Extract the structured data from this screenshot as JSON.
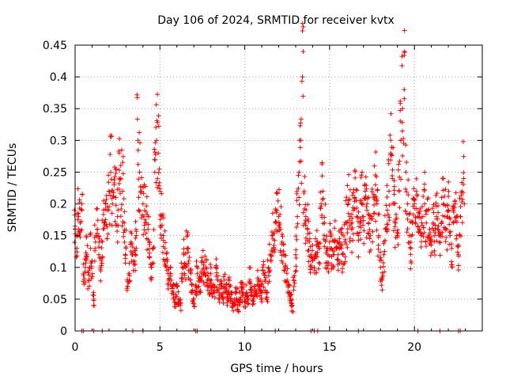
{
  "chart_data": {
    "type": "scatter",
    "title": "Day 106 of 2024, SRMTID for receiver kvtx",
    "xlabel": "GPS time / hours",
    "ylabel": "SRMTID / TECUs",
    "xlim": [
      0,
      24
    ],
    "ylim": [
      0,
      0.45
    ],
    "xticks": [
      0,
      5,
      10,
      15,
      20
    ],
    "xtick_labels": [
      "0",
      "5",
      "10",
      "15",
      "20"
    ],
    "yticks": [
      0,
      0.05,
      0.1,
      0.15,
      0.2,
      0.25,
      0.3,
      0.35,
      0.4,
      0.45
    ],
    "ytick_labels": [
      "0",
      "0.05",
      "0.1",
      "0.15",
      "0.2",
      "0.25",
      "0.3",
      "0.35",
      "0.4",
      "0.45"
    ],
    "grid": true,
    "marker": "+",
    "color": "#ff0000",
    "series": [
      {
        "name": "SRMTID",
        "points": [
          [
            0.0,
            0.16
          ],
          [
            0.1,
            0.15
          ],
          [
            0.2,
            0.18
          ],
          [
            0.3,
            0.17
          ],
          [
            0.4,
            0.2
          ],
          [
            0.5,
            0.09
          ],
          [
            0.6,
            0.1
          ],
          [
            0.7,
            0.12
          ],
          [
            0.8,
            0.08
          ],
          [
            0.9,
            0.13
          ],
          [
            1.0,
            0.11
          ],
          [
            1.1,
            0.05
          ],
          [
            1.2,
            0.14
          ],
          [
            1.3,
            0.16
          ],
          [
            1.4,
            0.12
          ],
          [
            1.5,
            0.1
          ],
          [
            1.6,
            0.14
          ],
          [
            1.7,
            0.17
          ],
          [
            1.8,
            0.2
          ],
          [
            1.9,
            0.19
          ],
          [
            2.0,
            0.22
          ],
          [
            2.1,
            0.25
          ],
          [
            2.2,
            0.2
          ],
          [
            2.3,
            0.23
          ],
          [
            2.4,
            0.21
          ],
          [
            2.5,
            0.18
          ],
          [
            2.6,
            0.28
          ],
          [
            2.7,
            0.24
          ],
          [
            2.8,
            0.22
          ],
          [
            2.9,
            0.17
          ],
          [
            3.0,
            0.13
          ],
          [
            3.1,
            0.07
          ],
          [
            3.2,
            0.09
          ],
          [
            3.3,
            0.14
          ],
          [
            3.4,
            0.12
          ],
          [
            3.5,
            0.11
          ],
          [
            3.6,
            0.15
          ],
          [
            3.7,
            0.3
          ],
          [
            3.8,
            0.25
          ],
          [
            3.9,
            0.22
          ],
          [
            4.0,
            0.2
          ],
          [
            4.1,
            0.19
          ],
          [
            4.2,
            0.17
          ],
          [
            4.3,
            0.16
          ],
          [
            4.4,
            0.14
          ],
          [
            4.5,
            0.1
          ],
          [
            4.6,
            0.13
          ],
          [
            4.7,
            0.25
          ],
          [
            4.8,
            0.3
          ],
          [
            4.9,
            0.28
          ],
          [
            5.0,
            0.22
          ],
          [
            5.1,
            0.18
          ],
          [
            5.2,
            0.15
          ],
          [
            5.3,
            0.13
          ],
          [
            5.4,
            0.1
          ],
          [
            5.5,
            0.08
          ],
          [
            5.6,
            0.09
          ],
          [
            5.7,
            0.07
          ],
          [
            5.8,
            0.06
          ],
          [
            5.9,
            0.05
          ],
          [
            6.0,
            0.07
          ],
          [
            6.1,
            0.05
          ],
          [
            6.2,
            0.04
          ],
          [
            6.3,
            0.09
          ],
          [
            6.4,
            0.12
          ],
          [
            6.5,
            0.1
          ],
          [
            6.6,
            0.13
          ],
          [
            6.7,
            0.11
          ],
          [
            6.8,
            0.08
          ],
          [
            6.9,
            0.06
          ],
          [
            7.0,
            0.05
          ],
          [
            7.1,
            0.06
          ],
          [
            7.2,
            0.09
          ],
          [
            7.3,
            0.07
          ],
          [
            7.4,
            0.08
          ],
          [
            7.5,
            0.11
          ],
          [
            7.6,
            0.09
          ],
          [
            7.7,
            0.1
          ],
          [
            7.8,
            0.08
          ],
          [
            7.9,
            0.07
          ],
          [
            8.0,
            0.09
          ],
          [
            8.1,
            0.07
          ],
          [
            8.2,
            0.06
          ],
          [
            8.3,
            0.1
          ],
          [
            8.4,
            0.08
          ],
          [
            8.5,
            0.06
          ],
          [
            8.6,
            0.07
          ],
          [
            8.7,
            0.05
          ],
          [
            8.8,
            0.08
          ],
          [
            8.9,
            0.06
          ],
          [
            9.0,
            0.05
          ],
          [
            9.1,
            0.07
          ],
          [
            9.2,
            0.06
          ],
          [
            9.3,
            0.04
          ],
          [
            9.4,
            0.05
          ],
          [
            9.5,
            0.06
          ],
          [
            9.6,
            0.04
          ],
          [
            9.7,
            0.05
          ],
          [
            9.8,
            0.07
          ],
          [
            9.9,
            0.06
          ],
          [
            10.0,
            0.05
          ],
          [
            10.1,
            0.06
          ],
          [
            10.2,
            0.05
          ],
          [
            10.3,
            0.08
          ],
          [
            10.4,
            0.06
          ],
          [
            10.5,
            0.05
          ],
          [
            10.6,
            0.07
          ],
          [
            10.7,
            0.06
          ],
          [
            10.8,
            0.08
          ],
          [
            10.9,
            0.07
          ],
          [
            11.0,
            0.06
          ],
          [
            11.1,
            0.09
          ],
          [
            11.2,
            0.08
          ],
          [
            11.3,
            0.06
          ],
          [
            11.4,
            0.1
          ],
          [
            11.5,
            0.12
          ],
          [
            11.6,
            0.15
          ],
          [
            11.7,
            0.13
          ],
          [
            11.8,
            0.17
          ],
          [
            11.9,
            0.19
          ],
          [
            12.0,
            0.18
          ],
          [
            12.1,
            0.16
          ],
          [
            12.2,
            0.14
          ],
          [
            12.3,
            0.12
          ],
          [
            12.4,
            0.1
          ],
          [
            12.5,
            0.08
          ],
          [
            12.6,
            0.06
          ],
          [
            12.7,
            0.05
          ],
          [
            12.8,
            0.04
          ],
          [
            12.9,
            0.07
          ],
          [
            13.0,
            0.12
          ],
          [
            13.1,
            0.18
          ],
          [
            13.2,
            0.25
          ],
          [
            13.3,
            0.3
          ],
          [
            13.4,
            0.4
          ],
          [
            13.5,
            0.22
          ],
          [
            13.6,
            0.18
          ],
          [
            13.7,
            0.16
          ],
          [
            13.8,
            0.14
          ],
          [
            13.9,
            0.12
          ],
          [
            14.0,
            0.11
          ],
          [
            14.1,
            0.1
          ],
          [
            14.2,
            0.12
          ],
          [
            14.3,
            0.14
          ],
          [
            14.4,
            0.13
          ],
          [
            14.5,
            0.2
          ],
          [
            14.6,
            0.22
          ],
          [
            14.7,
            0.17
          ],
          [
            14.8,
            0.13
          ],
          [
            14.9,
            0.12
          ],
          [
            15.0,
            0.14
          ],
          [
            15.1,
            0.13
          ],
          [
            15.2,
            0.12
          ],
          [
            15.3,
            0.14
          ],
          [
            15.4,
            0.13
          ],
          [
            15.5,
            0.12
          ],
          [
            15.6,
            0.14
          ],
          [
            15.7,
            0.13
          ],
          [
            15.8,
            0.12
          ],
          [
            15.9,
            0.14
          ],
          [
            16.0,
            0.17
          ],
          [
            16.1,
            0.2
          ],
          [
            16.2,
            0.18
          ],
          [
            16.3,
            0.16
          ],
          [
            16.4,
            0.19
          ],
          [
            16.5,
            0.21
          ],
          [
            16.6,
            0.18
          ],
          [
            16.7,
            0.15
          ],
          [
            16.8,
            0.17
          ],
          [
            16.9,
            0.2
          ],
          [
            17.0,
            0.18
          ],
          [
            17.1,
            0.22
          ],
          [
            17.2,
            0.19
          ],
          [
            17.3,
            0.17
          ],
          [
            17.4,
            0.15
          ],
          [
            17.5,
            0.18
          ],
          [
            17.6,
            0.21
          ],
          [
            17.7,
            0.23
          ],
          [
            17.8,
            0.2
          ],
          [
            17.9,
            0.15
          ],
          [
            18.0,
            0.1
          ],
          [
            18.1,
            0.08
          ],
          [
            18.2,
            0.12
          ],
          [
            18.3,
            0.16
          ],
          [
            18.4,
            0.19
          ],
          [
            18.5,
            0.22
          ],
          [
            18.6,
            0.28
          ],
          [
            18.7,
            0.24
          ],
          [
            18.8,
            0.2
          ],
          [
            18.9,
            0.17
          ],
          [
            19.0,
            0.15
          ],
          [
            19.1,
            0.22
          ],
          [
            19.2,
            0.3
          ],
          [
            19.3,
            0.35
          ],
          [
            19.4,
            0.38
          ],
          [
            19.5,
            0.25
          ],
          [
            19.6,
            0.2
          ],
          [
            19.7,
            0.15
          ],
          [
            19.8,
            0.13
          ],
          [
            19.9,
            0.17
          ],
          [
            20.0,
            0.2
          ],
          [
            20.1,
            0.22
          ],
          [
            20.2,
            0.18
          ],
          [
            20.3,
            0.16
          ],
          [
            20.4,
            0.15
          ],
          [
            20.5,
            0.18
          ],
          [
            20.6,
            0.2
          ],
          [
            20.7,
            0.17
          ],
          [
            20.8,
            0.19
          ],
          [
            20.9,
            0.16
          ],
          [
            21.0,
            0.14
          ],
          [
            21.1,
            0.17
          ],
          [
            21.2,
            0.15
          ],
          [
            21.3,
            0.18
          ],
          [
            21.4,
            0.16
          ],
          [
            21.5,
            0.14
          ],
          [
            21.6,
            0.17
          ],
          [
            21.7,
            0.2
          ],
          [
            21.8,
            0.18
          ],
          [
            21.9,
            0.16
          ],
          [
            22.0,
            0.19
          ],
          [
            22.1,
            0.15
          ],
          [
            22.2,
            0.13
          ],
          [
            22.3,
            0.17
          ],
          [
            22.4,
            0.2
          ],
          [
            22.5,
            0.15
          ],
          [
            22.6,
            0.12
          ],
          [
            22.7,
            0.18
          ],
          [
            22.8,
            0.22
          ],
          [
            22.9,
            0.24
          ]
        ],
        "zero_markers": [
          0.4,
          0.5,
          1.1,
          1.6,
          3.4,
          4.0,
          7.1,
          7.2,
          10.0,
          11.8,
          13.9,
          14.1,
          14.3,
          16.7,
          20.2,
          21.5,
          22.6,
          22.7
        ]
      }
    ]
  }
}
